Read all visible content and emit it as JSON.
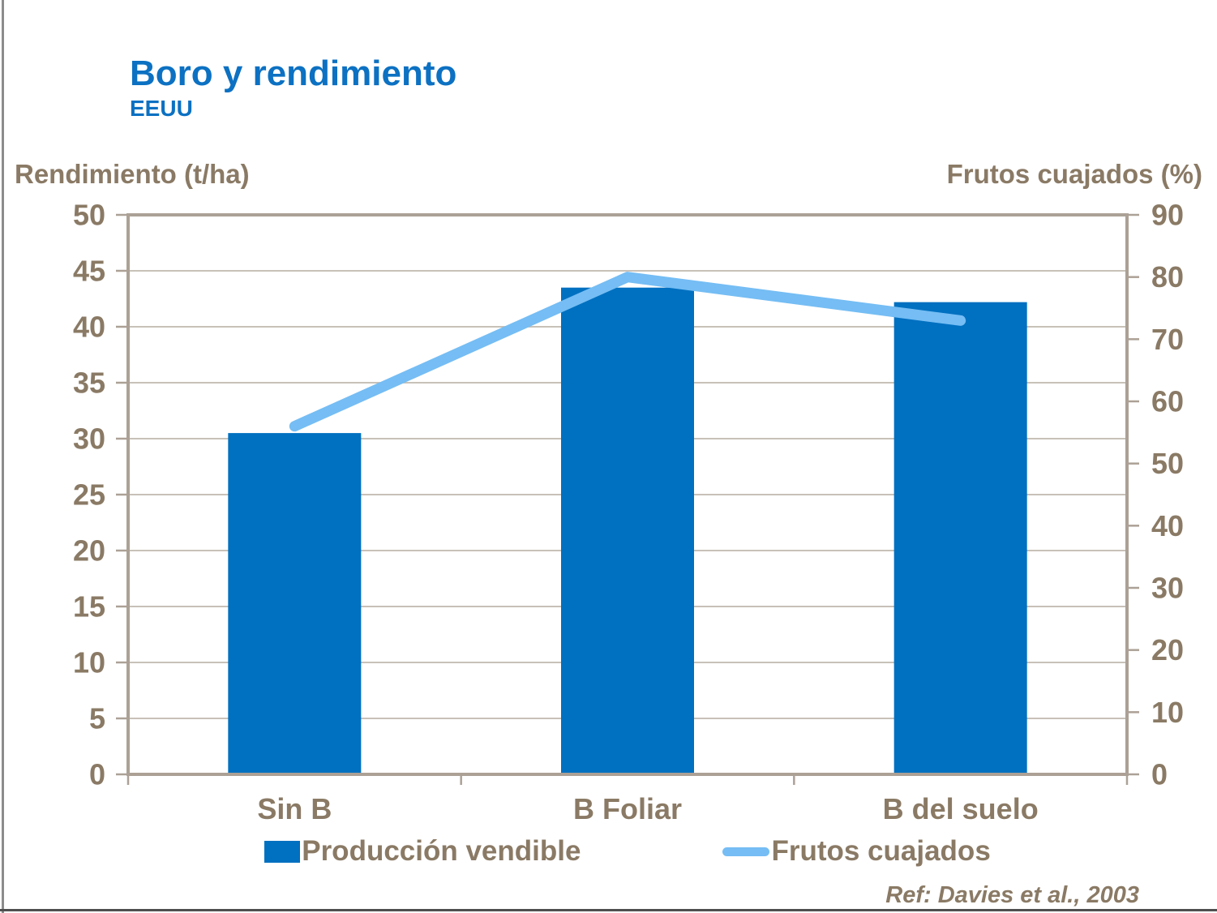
{
  "page": {
    "title": "Boro y rendimiento",
    "subtitle": "EEUU",
    "reference": "Ref: Davies et al., 2003"
  },
  "colors": {
    "title_blue": "#0c71c2",
    "text_brown": "#8a7a65",
    "bar_blue": "#0070c0",
    "line_blue": "#75bdf4",
    "plot_frame": "#aca196",
    "gridline": "#c0b8ae",
    "slide_left_border": "#8c8c8c",
    "slide_bottom_border": "#4f4f4f"
  },
  "chart_data": {
    "type": "bar",
    "subtype": "bar-line-combo",
    "categories": [
      "Sin B",
      "B Foliar",
      "B del suelo"
    ],
    "series": [
      {
        "name": "Producción vendible",
        "type": "bar",
        "axis": "left",
        "values": [
          30.5,
          43.5,
          42.2
        ],
        "color": "#0070c0"
      },
      {
        "name": "Frutos cuajados",
        "type": "line",
        "axis": "right",
        "values": [
          56,
          80,
          73
        ],
        "color": "#75bdf4"
      }
    ],
    "left_axis": {
      "label": "Rendimiento (t/ha)",
      "min": 0,
      "max": 50,
      "tick_step": 5,
      "ticks": [
        0,
        5,
        10,
        15,
        20,
        25,
        30,
        35,
        40,
        45,
        50
      ]
    },
    "right_axis": {
      "label": "Frutos cuajados (%)",
      "min": 0,
      "max": 90,
      "tick_step": 10,
      "ticks": [
        0,
        10,
        20,
        30,
        40,
        50,
        60,
        70,
        80,
        90
      ]
    },
    "grid": "horizontal gridlines at left-axis ticks",
    "legend_position": "bottom"
  }
}
